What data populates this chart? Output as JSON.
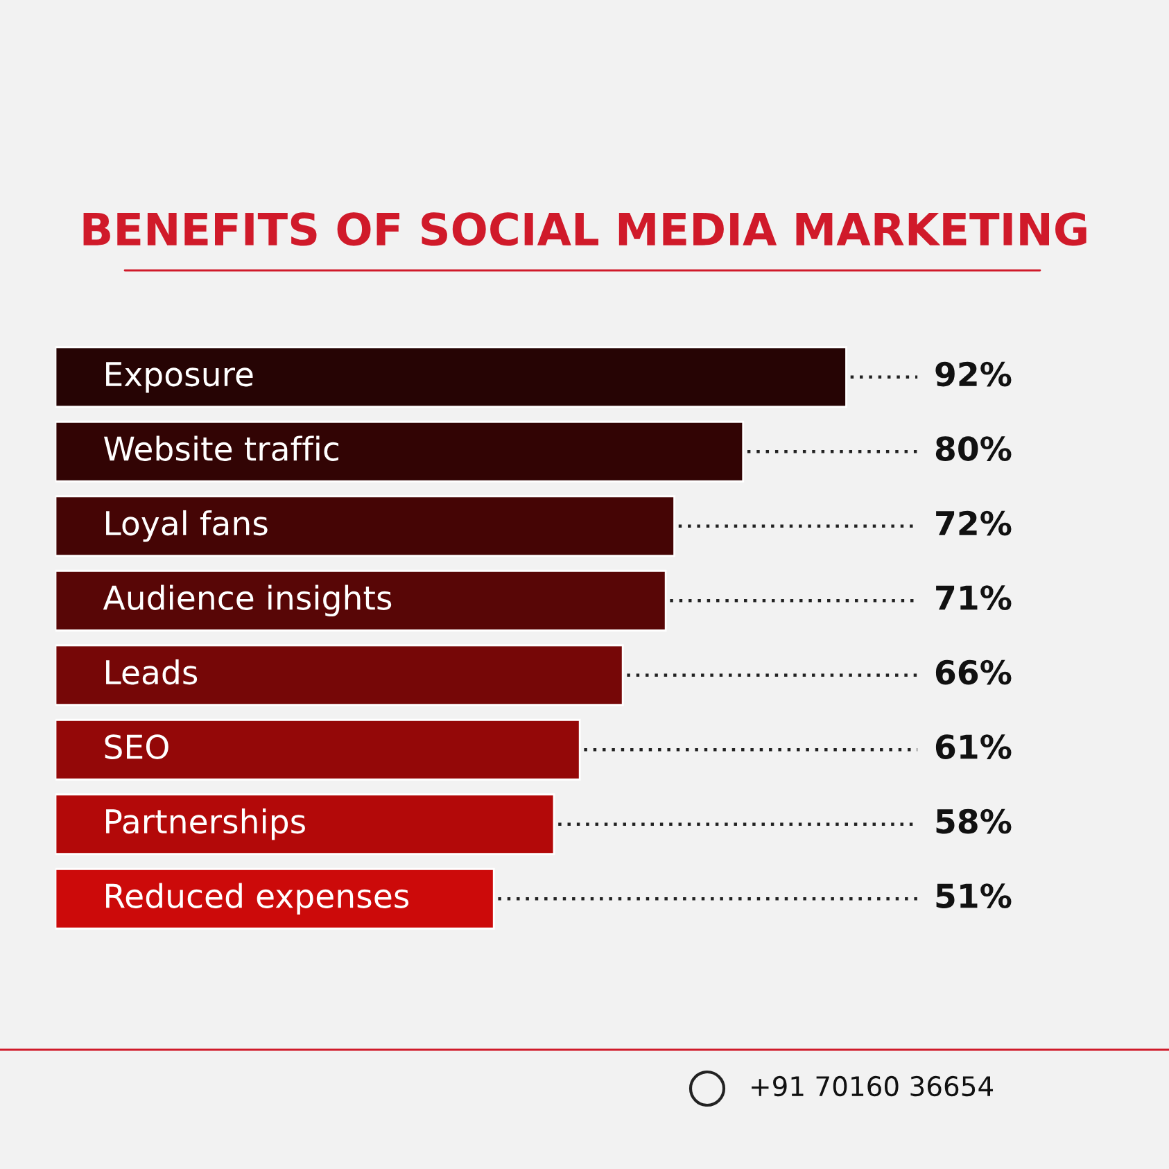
{
  "chart_data": {
    "type": "bar",
    "orientation": "horizontal",
    "title": "BENEFITS OF SOCIAL MEDIA MARKETING",
    "categories": [
      "Exposure",
      "Website traffic",
      "Loyal fans",
      "Audience insights",
      "Leads",
      "SEO",
      "Partnerships",
      "Reduced expenses"
    ],
    "values": [
      92,
      80,
      72,
      71,
      66,
      61,
      58,
      51
    ],
    "value_labels": [
      "92%",
      "80%",
      "72%",
      "71%",
      "66%",
      "61%",
      "58%",
      "51%"
    ],
    "colors": [
      "#260404",
      "#320404",
      "#450505",
      "#580606",
      "#760707",
      "#940808",
      "#b30909",
      "#cc0a0a"
    ],
    "annotations": [
      "+91 70160 36654"
    ]
  }
}
